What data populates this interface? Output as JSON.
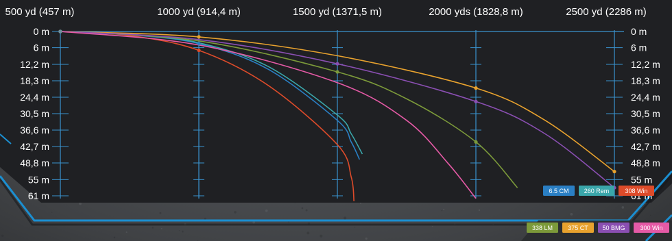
{
  "chart_data": {
    "type": "line",
    "title": "",
    "xlabel": "",
    "ylabel": "",
    "x_tick_labels": [
      "500 yd (457 m)",
      "1000 yd (914,4 m)",
      "1500 yd (1371,5 m)",
      "2000 yds (1828,8 m)",
      "2500 yd (2286 m)"
    ],
    "x_ticks_yd": [
      500,
      1000,
      1500,
      2000,
      2500
    ],
    "y_tick_labels": [
      "0 m",
      "6 m",
      "12,2 m",
      "18,3 m",
      "24,4 m",
      "30,5 m",
      "36,6 m",
      "42,7 m",
      "48,8 m",
      "55 m",
      "61 m"
    ],
    "y_ticks_m": [
      0,
      6,
      12.2,
      18.3,
      24.4,
      30.5,
      36.6,
      42.7,
      48.8,
      55,
      61
    ],
    "x_unit": "yd",
    "y_unit": "m drop",
    "xlim": [
      500,
      2500
    ],
    "ylim": [
      0,
      61
    ],
    "legend_position": "bottom-right",
    "series": [
      {
        "name": "6.5 CM",
        "color": "#2a7fc4",
        "points": [
          [
            500,
            0
          ],
          [
            750,
            1.2
          ],
          [
            1000,
            4.5
          ],
          [
            1250,
            14
          ],
          [
            1500,
            33
          ],
          [
            1550,
            41
          ],
          [
            1580,
            47.5
          ]
        ]
      },
      {
        "name": "260 Rem",
        "color": "#3aa6aa",
        "points": [
          [
            500,
            0
          ],
          [
            750,
            1.1
          ],
          [
            1000,
            4.2
          ],
          [
            1250,
            13
          ],
          [
            1500,
            31
          ],
          [
            1550,
            38
          ],
          [
            1590,
            45.5
          ]
        ]
      },
      {
        "name": "308 Win",
        "color": "#dd4b2a",
        "points": [
          [
            500,
            0
          ],
          [
            750,
            1.5
          ],
          [
            1000,
            7
          ],
          [
            1250,
            20
          ],
          [
            1500,
            42
          ],
          [
            1550,
            54
          ],
          [
            1560,
            63
          ]
        ]
      },
      {
        "name": "338 LM",
        "color": "#7c9a3a",
        "points": [
          [
            500,
            0
          ],
          [
            1000,
            3.5
          ],
          [
            1500,
            15
          ],
          [
            1750,
            25
          ],
          [
            2000,
            41
          ],
          [
            2150,
            58
          ]
        ]
      },
      {
        "name": "375 CT",
        "color": "#e8a22e",
        "points": [
          [
            500,
            0
          ],
          [
            1000,
            2
          ],
          [
            1500,
            9
          ],
          [
            2000,
            21
          ],
          [
            2250,
            33
          ],
          [
            2500,
            52
          ]
        ]
      },
      {
        "name": "50 BMG",
        "color": "#8a4fb2",
        "points": [
          [
            500,
            0
          ],
          [
            1000,
            3
          ],
          [
            1500,
            12
          ],
          [
            2000,
            26
          ],
          [
            2250,
            38
          ],
          [
            2500,
            58
          ]
        ]
      },
      {
        "name": "300 Win",
        "color": "#e55aa6",
        "points": [
          [
            500,
            0
          ],
          [
            1000,
            5
          ],
          [
            1500,
            19
          ],
          [
            1750,
            33
          ],
          [
            1900,
            49
          ],
          [
            2000,
            62
          ]
        ]
      }
    ],
    "markers": [
      {
        "series": "375 CT",
        "x": 1000,
        "y": 2
      },
      {
        "series": "6.5 CM",
        "x": 1000,
        "y": 4.5
      },
      {
        "series": "308 Win",
        "x": 1000,
        "y": 7
      },
      {
        "series": "50 BMG",
        "x": 1500,
        "y": 12
      },
      {
        "series": "338 LM",
        "x": 1500,
        "y": 15
      },
      {
        "series": "375 CT",
        "x": 2000,
        "y": 21
      },
      {
        "series": "50 BMG",
        "x": 2000,
        "y": 26
      },
      {
        "series": "338 LM",
        "x": 2000,
        "y": 41
      },
      {
        "series": "375 CT",
        "x": 2500,
        "y": 52
      },
      {
        "series": "50 BMG",
        "x": 2500,
        "y": 58
      }
    ]
  },
  "legend": {
    "items": [
      {
        "label": "6.5 CM",
        "color": "#2a7fc4"
      },
      {
        "label": "260 Rem",
        "color": "#3aa6aa"
      },
      {
        "label": "308 Win",
        "color": "#dd4b2a"
      },
      {
        "label": "338 LM",
        "color": "#7c9a3a"
      },
      {
        "label": "375 CT",
        "color": "#e8a22e"
      },
      {
        "label": "50 BMG",
        "color": "#8a4fb2"
      },
      {
        "label": "300 Win",
        "color": "#e55aa6"
      }
    ]
  },
  "colors": {
    "panel": "#1f2023",
    "frame_accent": "#1b8fd1",
    "axis": "#3a93cf",
    "text": "#ffffff"
  }
}
